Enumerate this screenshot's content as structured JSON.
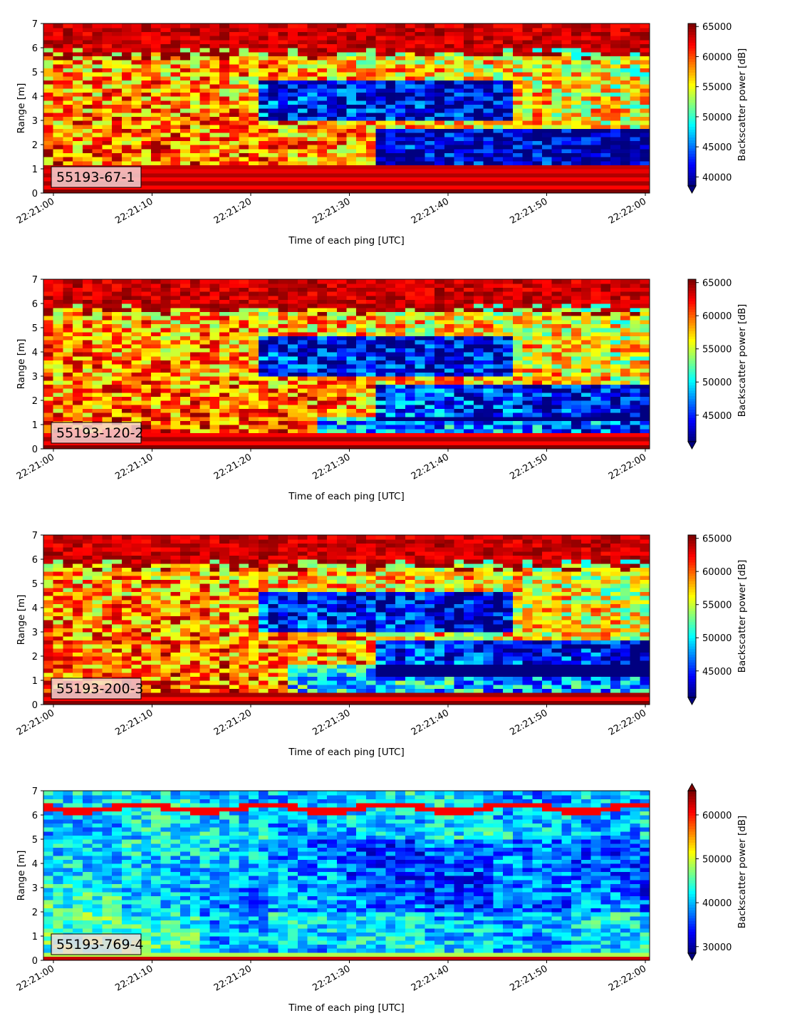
{
  "chart_data": [
    {
      "type": "heatmap",
      "label": "55193-67-1",
      "xlabel": "Time of each ping [UTC]",
      "ylabel": "Range [m]",
      "xticks": [
        "22:21:00",
        "22:21:10",
        "22:21:20",
        "22:21:30",
        "22:21:40",
        "22:21:50",
        "22:22:00"
      ],
      "yticks": [
        "0",
        "1",
        "2",
        "3",
        "4",
        "5",
        "6",
        "7"
      ],
      "ylim": [
        0,
        7
      ],
      "colorbar": {
        "label": "Backscatter power [dB]",
        "ticks": [
          "40000",
          "45000",
          "50000",
          "55000",
          "60000",
          "65000"
        ],
        "range": [
          38500,
          65500
        ],
        "extend": "min",
        "colormap": "jet"
      }
    },
    {
      "type": "heatmap",
      "label": "55193-120-2",
      "xlabel": "Time of each ping [UTC]",
      "ylabel": "Range [m]",
      "xticks": [
        "22:21:00",
        "22:21:10",
        "22:21:20",
        "22:21:30",
        "22:21:40",
        "22:21:50",
        "22:22:00"
      ],
      "yticks": [
        "0",
        "1",
        "2",
        "3",
        "4",
        "5",
        "6",
        "7"
      ],
      "ylim": [
        0,
        7
      ],
      "colorbar": {
        "label": "Backscatter power [dB]",
        "ticks": [
          "45000",
          "50000",
          "55000",
          "60000",
          "65000"
        ],
        "range": [
          41000,
          65500
        ],
        "extend": "min",
        "colormap": "jet"
      }
    },
    {
      "type": "heatmap",
      "label": "55193-200-3",
      "xlabel": "Time of each ping [UTC]",
      "ylabel": "Range [m]",
      "xticks": [
        "22:21:00",
        "22:21:10",
        "22:21:20",
        "22:21:30",
        "22:21:40",
        "22:21:50",
        "22:22:00"
      ],
      "yticks": [
        "0",
        "1",
        "2",
        "3",
        "4",
        "5",
        "6",
        "7"
      ],
      "ylim": [
        0,
        7
      ],
      "colorbar": {
        "label": "Backscatter power [dB]",
        "ticks": [
          "45000",
          "50000",
          "55000",
          "60000",
          "65000"
        ],
        "range": [
          41000,
          65500
        ],
        "extend": "min",
        "colormap": "jet"
      }
    },
    {
      "type": "heatmap",
      "label": "55193-769-4",
      "xlabel": "Time of each ping [UTC]",
      "ylabel": "Range [m]",
      "xticks": [
        "22:21:00",
        "22:21:10",
        "22:21:20",
        "22:21:30",
        "22:21:40",
        "22:21:50",
        "22:22:00"
      ],
      "yticks": [
        "0",
        "1",
        "2",
        "3",
        "4",
        "5",
        "6",
        "7"
      ],
      "ylim": [
        0,
        7
      ],
      "colorbar": {
        "label": "Backscatter power [dB]",
        "ticks": [
          "30000",
          "40000",
          "50000",
          "60000"
        ],
        "range": [
          28500,
          65500
        ],
        "extend": "both",
        "colormap": "jet"
      }
    }
  ]
}
